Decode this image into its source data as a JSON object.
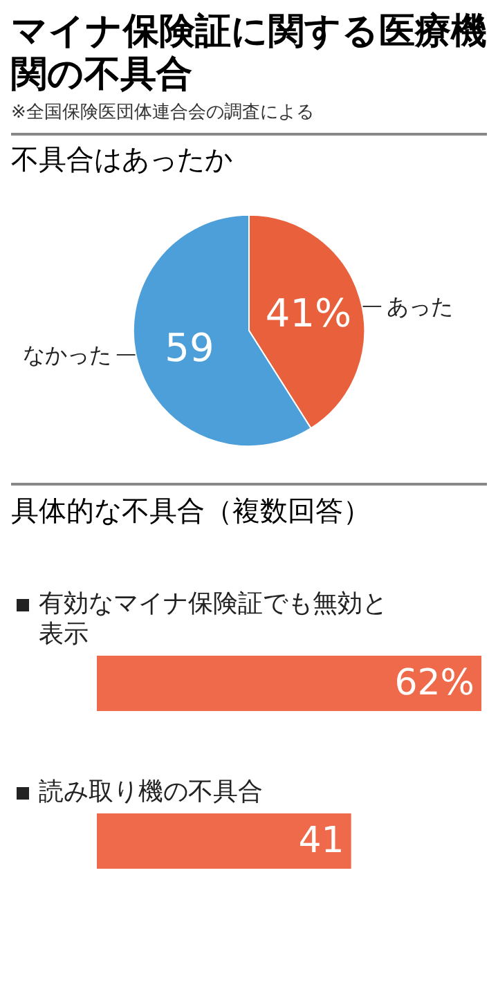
{
  "chart_data": [
    {
      "type": "pie",
      "title": "マイナ保険証に関する医療機関の不具合",
      "annotations": [
        "※全国保険医団体連合会の調査による"
      ],
      "subtitle": "不具合はあったか",
      "categories": [
        "あった",
        "なかった"
      ],
      "values": [
        41,
        59
      ],
      "value_labels": [
        "41%",
        "59"
      ],
      "colors": [
        "#e8603c",
        "#4d9fd9"
      ]
    },
    {
      "type": "bar",
      "orientation": "horizontal",
      "title": "具体的な不具合（複数回答）",
      "categories": [
        "有効なマイナ保険証でも無効と表示",
        "読み取り機の不具合"
      ],
      "values": [
        62,
        41
      ],
      "value_labels": [
        "62%",
        "41"
      ],
      "color": "#ef6a4a"
    }
  ]
}
